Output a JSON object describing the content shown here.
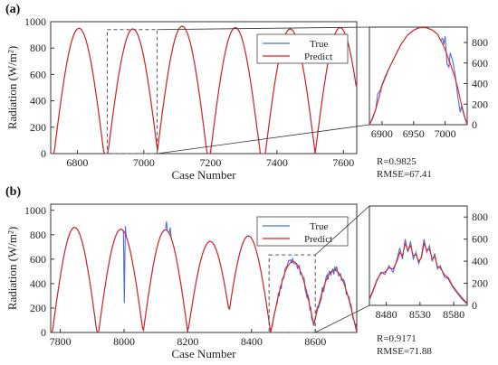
{
  "colors": {
    "true_series": "#4a6fd8",
    "predict_series": "#e0211e",
    "axis": "#333333",
    "zoom_box": "#555555"
  },
  "chart_data": [
    {
      "panel": "(a)",
      "type": "line",
      "xlabel": "Case Number",
      "ylabel": "Radiation (W/m²)",
      "xlim": [
        6720,
        7640
      ],
      "ylim": [
        0,
        1000
      ],
      "xticks": [
        "6800",
        "7000",
        "7200",
        "7400",
        "7600"
      ],
      "yticks": [
        "0",
        "200",
        "400",
        "600",
        "800",
        "1000"
      ],
      "legend": {
        "entries": [
          "True",
          "Predict"
        ],
        "position": "top-right"
      },
      "peaks": [
        {
          "center": 6805,
          "height": 950
        },
        {
          "center": 6967,
          "height": 945
        },
        {
          "center": 7115,
          "height": 965
        },
        {
          "center": 7275,
          "height": 955
        },
        {
          "center": 7440,
          "height": 945
        },
        {
          "center": 7590,
          "height": 955
        }
      ],
      "half_width": 75,
      "zoom_region": {
        "x": [
          6890,
          7040
        ],
        "y": [
          0,
          940
        ]
      },
      "inset": {
        "xlim": [
          6880,
          7035
        ],
        "ylim": [
          0,
          950
        ],
        "xticks": [
          "6900",
          "6950",
          "7000"
        ],
        "yticks": [
          "0",
          "200",
          "400",
          "600",
          "800"
        ],
        "true_points": [
          [
            6880,
            0
          ],
          [
            6885,
            70
          ],
          [
            6890,
            150
          ],
          [
            6893,
            300
          ],
          [
            6897,
            330
          ],
          [
            6900,
            390
          ],
          [
            6905,
            470
          ],
          [
            6912,
            560
          ],
          [
            6920,
            660
          ],
          [
            6930,
            780
          ],
          [
            6940,
            870
          ],
          [
            6950,
            920
          ],
          [
            6960,
            950
          ],
          [
            6970,
            945
          ],
          [
            6980,
            920
          ],
          [
            6988,
            880
          ],
          [
            6993,
            820
          ],
          [
            6996,
            840
          ],
          [
            6998,
            780
          ],
          [
            7000,
            860
          ],
          [
            7003,
            590
          ],
          [
            7006,
            560
          ],
          [
            7008,
            700
          ],
          [
            7012,
            620
          ],
          [
            7016,
            480
          ],
          [
            7020,
            280
          ],
          [
            7024,
            120
          ],
          [
            7026,
            180
          ],
          [
            7030,
            90
          ],
          [
            7035,
            0
          ]
        ],
        "predict_points": [
          [
            6880,
            0
          ],
          [
            6885,
            60
          ],
          [
            6890,
            150
          ],
          [
            6895,
            260
          ],
          [
            6900,
            380
          ],
          [
            6906,
            470
          ],
          [
            6912,
            560
          ],
          [
            6920,
            660
          ],
          [
            6930,
            780
          ],
          [
            6940,
            870
          ],
          [
            6950,
            920
          ],
          [
            6960,
            945
          ],
          [
            6970,
            945
          ],
          [
            6980,
            920
          ],
          [
            6988,
            880
          ],
          [
            6994,
            810
          ],
          [
            6998,
            760
          ],
          [
            7002,
            700
          ],
          [
            7006,
            630
          ],
          [
            7010,
            560
          ],
          [
            7015,
            470
          ],
          [
            7020,
            360
          ],
          [
            7025,
            220
          ],
          [
            7030,
            100
          ],
          [
            7035,
            0
          ]
        ]
      },
      "stats": {
        "r": "R=0.9825",
        "rmse": "RMSE=67.41"
      }
    },
    {
      "panel": "(b)",
      "type": "line",
      "xlabel": "Case Number",
      "ylabel": "Radiation (W/m²)",
      "xlim": [
        7770,
        8730
      ],
      "ylim": [
        0,
        1050
      ],
      "xticks": [
        "7800",
        "8000",
        "8200",
        "8400",
        "8600"
      ],
      "yticks": [
        "0",
        "200",
        "400",
        "600",
        "800",
        "1000"
      ],
      "legend": {
        "entries": [
          "True",
          "Predict"
        ],
        "position": "top-right"
      },
      "peaks": [
        {
          "center": 7845,
          "height": 860
        },
        {
          "center": 7990,
          "height": 845
        },
        {
          "center": 8130,
          "height": 840
        },
        {
          "center": 8270,
          "height": 745
        },
        {
          "center": 8390,
          "height": 790
        }
      ],
      "half_width": 70,
      "noisy_peaks": [
        {
          "center": 8530,
          "height": 580
        },
        {
          "center": 8660,
          "height": 510
        }
      ],
      "spikes": [
        {
          "x": 8002,
          "y": 240
        },
        {
          "x": 8004,
          "y": 870
        },
        {
          "x": 8120,
          "y": 820
        },
        {
          "x": 8132,
          "y": 910
        },
        {
          "x": 8145,
          "y": 860
        }
      ],
      "zoom_region": {
        "x": [
          8455,
          8600
        ],
        "y": [
          0,
          635
        ]
      },
      "inset": {
        "xlim": [
          8455,
          8600
        ],
        "ylim": [
          0,
          900
        ],
        "xticks": [
          "8480",
          "8530",
          "8580"
        ],
        "yticks": [
          "0",
          "200",
          "400",
          "600",
          "800"
        ],
        "true_points": [
          [
            8455,
            50
          ],
          [
            8460,
            120
          ],
          [
            8466,
            220
          ],
          [
            8472,
            300
          ],
          [
            8478,
            280
          ],
          [
            8484,
            360
          ],
          [
            8490,
            300
          ],
          [
            8496,
            420
          ],
          [
            8500,
            520
          ],
          [
            8504,
            420
          ],
          [
            8508,
            600
          ],
          [
            8512,
            480
          ],
          [
            8516,
            580
          ],
          [
            8520,
            420
          ],
          [
            8524,
            480
          ],
          [
            8528,
            380
          ],
          [
            8532,
            440
          ],
          [
            8536,
            600
          ],
          [
            8540,
            480
          ],
          [
            8544,
            540
          ],
          [
            8548,
            400
          ],
          [
            8552,
            470
          ],
          [
            8556,
            330
          ],
          [
            8560,
            360
          ],
          [
            8566,
            260
          ],
          [
            8572,
            240
          ],
          [
            8578,
            170
          ],
          [
            8584,
            120
          ],
          [
            8592,
            60
          ],
          [
            8600,
            10
          ]
        ],
        "predict_points": [
          [
            8455,
            60
          ],
          [
            8460,
            130
          ],
          [
            8466,
            230
          ],
          [
            8472,
            290
          ],
          [
            8478,
            300
          ],
          [
            8484,
            340
          ],
          [
            8490,
            330
          ],
          [
            8496,
            400
          ],
          [
            8500,
            480
          ],
          [
            8504,
            450
          ],
          [
            8508,
            560
          ],
          [
            8512,
            500
          ],
          [
            8516,
            540
          ],
          [
            8520,
            450
          ],
          [
            8524,
            460
          ],
          [
            8528,
            400
          ],
          [
            8532,
            430
          ],
          [
            8536,
            560
          ],
          [
            8540,
            500
          ],
          [
            8544,
            510
          ],
          [
            8548,
            420
          ],
          [
            8552,
            440
          ],
          [
            8556,
            350
          ],
          [
            8560,
            340
          ],
          [
            8566,
            280
          ],
          [
            8572,
            250
          ],
          [
            8578,
            180
          ],
          [
            8584,
            130
          ],
          [
            8592,
            70
          ],
          [
            8600,
            20
          ]
        ]
      },
      "stats": {
        "r": "R=0.9171",
        "rmse": "RMSE=71.88"
      }
    }
  ]
}
